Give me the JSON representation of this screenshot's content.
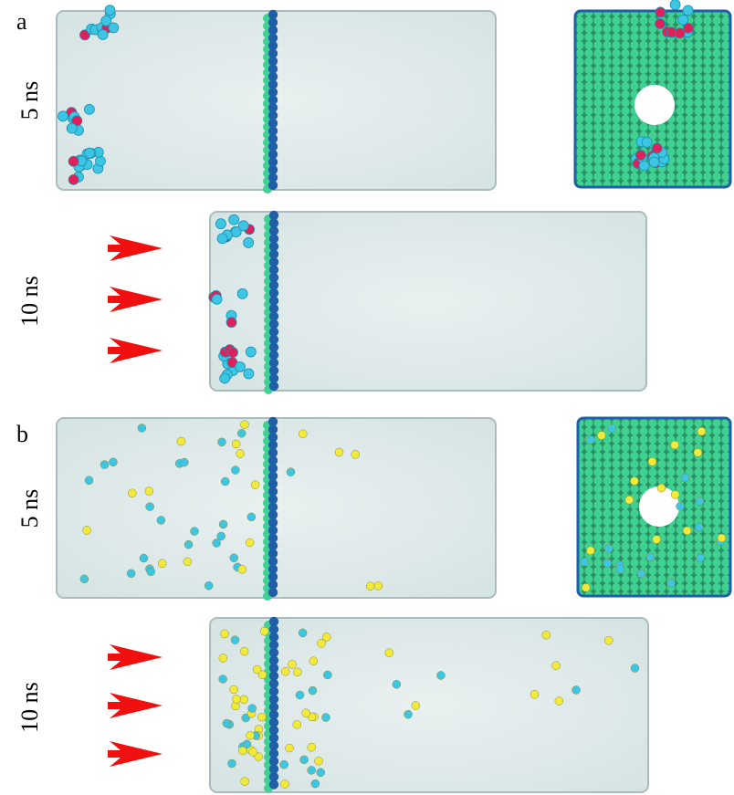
{
  "panels": [
    {
      "label": "a",
      "rows": [
        {
          "time": "5 ns"
        },
        {
          "time": "10 ns"
        }
      ]
    },
    {
      "label": "b",
      "rows": [
        {
          "time": "5 ns"
        },
        {
          "time": "10 ns"
        }
      ]
    }
  ]
}
